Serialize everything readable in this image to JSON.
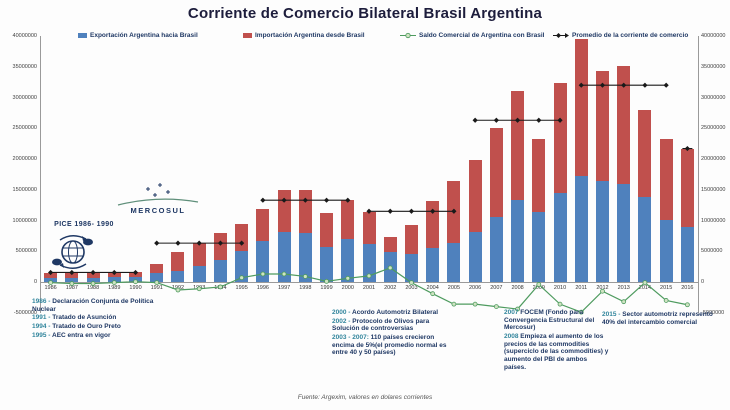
{
  "page": {
    "title": "Corriente de Comercio Bilateral Brasil Argentina",
    "source_note": "Fuente: Argexim, valores en dolares corrientes"
  },
  "colors": {
    "exports_bar": "#4f81bd",
    "imports_bar": "#c0504d",
    "saldo_line": "#4e9b5f",
    "saldo_marker_fill": "#cfe3c2",
    "promedio_line": "#1a1a1a",
    "annotation_year": "#31859c",
    "annotation_text": "#1f3864",
    "title_text": "#1d1d3c"
  },
  "legend": [
    {
      "label": "Exportación Argentina hacia Brasil",
      "marker": "square",
      "color": "#4f81bd"
    },
    {
      "label": "Importación Argentina desde Brasil",
      "marker": "square",
      "color": "#c0504d"
    },
    {
      "label": "Saldo Comercial de Argentina con Brasil",
      "marker": "line-dot",
      "color": "#4e9b5f"
    },
    {
      "label": "Promedio de la  corriente de comercio",
      "marker": "arrow-diamond",
      "color": "#1a1a1a"
    }
  ],
  "chart_data": {
    "type": "bar",
    "subtype": "stacked-bars-with-line-and-average-segments",
    "title": "Corriente de Comercio Bilateral Brasil Argentina",
    "xlabel": "",
    "ylabel": "",
    "ylim": [
      -5000000,
      40000000
    ],
    "y_ticks": [
      40000000,
      35000000,
      30000000,
      25000000,
      20000000,
      15000000,
      10000000,
      5000000,
      0,
      -5000000
    ],
    "grid": false,
    "legend_position": "top",
    "categories": [
      "1986",
      "1987",
      "1988",
      "1989",
      "1990",
      "1991",
      "1992",
      "1993",
      "1994",
      "1995",
      "1996",
      "1997",
      "1998",
      "1999",
      "2000",
      "2001",
      "2002",
      "2003",
      "2004",
      "2005",
      "2006",
      "2007",
      "2008",
      "2009",
      "2010",
      "2011",
      "2012",
      "2013",
      "2014",
      "2015",
      "2016"
    ],
    "series": [
      {
        "name": "Exportación Argentina hacia Brasil",
        "type": "bar-stack",
        "color": "#4f81bd",
        "values": [
          700000,
          600000,
          650000,
          750000,
          850000,
          1400000,
          1800000,
          2600000,
          3600000,
          5100000,
          6600000,
          8100000,
          7900000,
          5700000,
          7000000,
          6200000,
          4800000,
          4600000,
          5600000,
          6400000,
          8100000,
          10500000,
          13300000,
          11400000,
          14400000,
          17300000,
          16400000,
          16000000,
          13900000,
          10100000,
          9000000
        ]
      },
      {
        "name": "Importación Argentina desde Brasil",
        "type": "bar-stack",
        "color": "#c0504d",
        "values": [
          800000,
          850000,
          900000,
          850000,
          800000,
          1500000,
          3100000,
          3700000,
          4400000,
          4400000,
          5300000,
          6800000,
          7000000,
          5600000,
          6400000,
          5200000,
          2500000,
          4700000,
          7500000,
          10000000,
          11700000,
          14500000,
          17700000,
          11800000,
          18000000,
          22200000,
          17900000,
          19200000,
          14000000,
          13100000,
          12700000
        ]
      },
      {
        "name": "Saldo Comercial de Argentina con Brasil",
        "type": "line",
        "color": "#4e9b5f",
        "values": [
          -100000,
          -250000,
          -250000,
          -100000,
          50000,
          -100000,
          -1300000,
          -1100000,
          -800000,
          700000,
          1300000,
          1300000,
          900000,
          100000,
          600000,
          1000000,
          2300000,
          -100000,
          -1900000,
          -3600000,
          -3600000,
          -4000000,
          -4400000,
          -400000,
          -3600000,
          -4900000,
          -1500000,
          -3200000,
          -100000,
          -3000000,
          -3700000
        ]
      },
      {
        "name": "Promedio de la corriente de comercio",
        "type": "average-segments",
        "color": "#1a1a1a",
        "segments": [
          {
            "from": "1986",
            "to": "1990",
            "value": 1550000
          },
          {
            "from": "1991",
            "to": "1995",
            "value": 6320000
          },
          {
            "from": "1996",
            "to": "2000",
            "value": 13300000
          },
          {
            "from": "2001",
            "to": "2005",
            "value": 11500000
          },
          {
            "from": "2006",
            "to": "2010",
            "value": 26300000
          },
          {
            "from": "2011",
            "to": "2015",
            "value": 32000000
          },
          {
            "from": "2016",
            "to": "2016",
            "value": 21700000
          }
        ]
      }
    ]
  },
  "logos": {
    "pice_label": "PICE 1986- 1990",
    "mercosul_label": "MERCOSUL"
  },
  "annotations": {
    "left": [
      {
        "year": "1986 -",
        "text": "Declaración Conjunta de Política Nuclear"
      },
      {
        "year": "1991 -",
        "text": "Tratado de Asunción"
      },
      {
        "year": "1994 -",
        "text": "Tratado de Ouro Preto"
      },
      {
        "year": "1995 -",
        "text": "AEC entra en vigor"
      }
    ],
    "center": [
      {
        "year": "2000 -",
        "text": "Acordo Automotriz Bilateral"
      },
      {
        "year": "2002 -",
        "text": "Protocolo de Olivos para Solución de controversias"
      },
      {
        "year": "2003 - 2007:",
        "text": "110 países crecieron encima de 5%(el promedio normal es entre 40 y 50 países)"
      }
    ],
    "right": [
      {
        "year": "2007",
        "text": "FOCEM (Fondo para Convergencia Estructural del Mercosur)"
      },
      {
        "year": "2008",
        "text": "Empieza el aumento de los precios de las commodities (superciclo de las commodities) y aumento del PBI de ambos países."
      }
    ],
    "far_right": [
      {
        "year": "2015 -",
        "text": "Sector automotriz representó 40% del intercambio comercial"
      }
    ]
  }
}
